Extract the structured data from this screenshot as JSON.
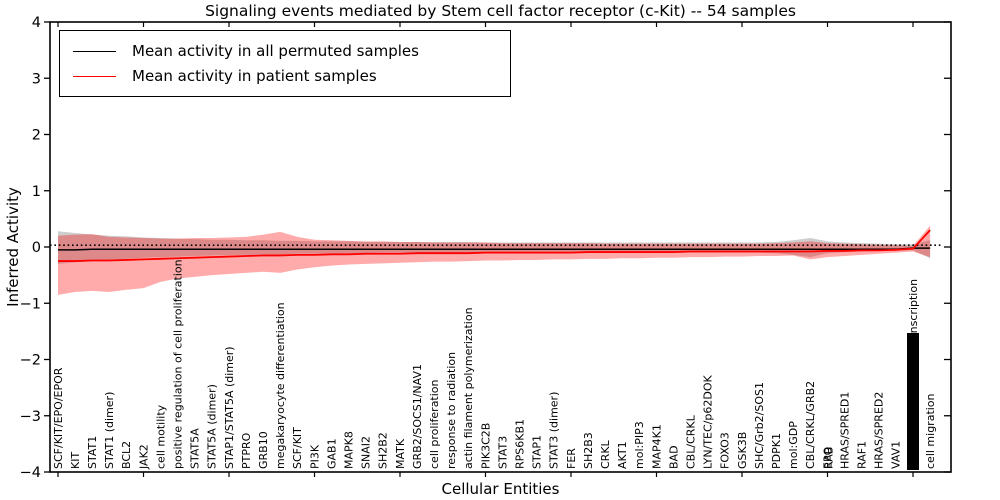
{
  "title": "Signaling events mediated by Stem cell factor receptor (c-Kit) -- 54 samples",
  "legend": {
    "entries": [
      {
        "label": "Mean activity in all permuted samples",
        "color": "#000000"
      },
      {
        "label": "Mean activity in patient samples",
        "color": "#ff0000"
      }
    ]
  },
  "chart_data": {
    "type": "line",
    "title": "Signaling events mediated by Stem cell factor receptor (c-Kit) -- 54 samples",
    "xlabel": "Cellular Entities",
    "ylabel": "Inferred Activity",
    "ylim": [
      -4,
      4
    ],
    "yticks": [
      {
        "v": 4,
        "label": "4"
      },
      {
        "v": 3,
        "label": "3"
      },
      {
        "v": 2,
        "label": "2"
      },
      {
        "v": 1,
        "label": "1"
      },
      {
        "v": 0,
        "label": "0"
      },
      {
        "v": -1,
        "label": "−1"
      },
      {
        "v": -2,
        "label": "−2"
      },
      {
        "v": -3,
        "label": "−3"
      },
      {
        "v": -4,
        "label": "−4"
      }
    ],
    "grid": false,
    "legend_position": "upper left",
    "zero_line_style": "dashdot",
    "categories": [
      "SCF/KIT/EPO/EPOR",
      "KIT",
      "STAT1",
      "STAT1 (dimer)",
      "BCL2",
      "JAK2",
      "cell motility",
      "positive regulation of cell proliferation",
      "STAT5A",
      "STAT5A (dimer)",
      "STAP1/STAT5A (dimer)",
      "PTPRO",
      "GRB10",
      "megakaryocyte differentiation",
      "SCF/KIT",
      "PI3K",
      "GAB1",
      "MAPK8",
      "SNAI2",
      "SH2B2",
      "MATK",
      "GRB2/SOCS1/NAV1",
      "cell proliferation",
      "response to radiation",
      "actin filament polymerization",
      "PIK3C2B",
      "STAT3",
      "RPS6KB1",
      "STAP1",
      "STAT3 (dimer)",
      "FER",
      "SH2B3",
      "CRKL",
      "AKT1",
      "mol:PIP3",
      "MAP4K1",
      "BAD",
      "CBL/CRKL",
      "LYN/TEC/p62DOK",
      "FOXO3",
      "GSK3B",
      "SHC/Grb2/SOS1",
      "PDPK1",
      "mol:GDP",
      "CBL/CRKL/GRB2",
      "EPO",
      "HRAS/SPRED1",
      "RAF1",
      "HRAS/SPRED2",
      "VAV1",
      "positive regulation of transcription",
      "cell migration"
    ],
    "overlapped_tick": {
      "index": 45,
      "labels": [
        "EPO",
        "RAB"
      ]
    },
    "illegible_cluster": {
      "index": 50,
      "visible_label": "positive regulation of transcription",
      "rendered_as": "solid block of many overlapping labels"
    },
    "series": [
      {
        "name": "Mean activity in all permuted samples",
        "color": "#000000",
        "values": [
          -0.05,
          -0.05,
          -0.04,
          -0.04,
          -0.04,
          -0.04,
          -0.04,
          -0.04,
          -0.04,
          -0.04,
          -0.04,
          -0.04,
          -0.04,
          -0.04,
          -0.04,
          -0.04,
          -0.04,
          -0.04,
          -0.04,
          -0.04,
          -0.04,
          -0.04,
          -0.04,
          -0.04,
          -0.04,
          -0.04,
          -0.04,
          -0.04,
          -0.04,
          -0.04,
          -0.04,
          -0.04,
          -0.04,
          -0.04,
          -0.04,
          -0.04,
          -0.04,
          -0.04,
          -0.04,
          -0.04,
          -0.04,
          -0.04,
          -0.04,
          -0.04,
          -0.04,
          -0.04,
          -0.04,
          -0.04,
          -0.04,
          -0.04,
          -0.02,
          -0.02
        ]
      },
      {
        "name": "Mean activity in patient samples",
        "color": "#ff0000",
        "values": [
          -0.25,
          -0.25,
          -0.24,
          -0.24,
          -0.23,
          -0.22,
          -0.21,
          -0.2,
          -0.19,
          -0.18,
          -0.17,
          -0.16,
          -0.15,
          -0.15,
          -0.14,
          -0.14,
          -0.13,
          -0.13,
          -0.12,
          -0.12,
          -0.12,
          -0.11,
          -0.11,
          -0.11,
          -0.11,
          -0.1,
          -0.1,
          -0.1,
          -0.1,
          -0.1,
          -0.1,
          -0.09,
          -0.09,
          -0.09,
          -0.09,
          -0.09,
          -0.09,
          -0.08,
          -0.08,
          -0.08,
          -0.08,
          -0.08,
          -0.08,
          -0.08,
          -0.08,
          -0.07,
          -0.07,
          -0.06,
          -0.06,
          -0.05,
          -0.03,
          0.3
        ]
      }
    ],
    "bands": [
      {
        "name": "permuted-samples-std-band",
        "color": "rgba(90,90,90,0.30)",
        "upper": [
          0.28,
          0.25,
          0.22,
          0.2,
          0.19,
          0.17,
          0.16,
          0.15,
          0.14,
          0.13,
          0.13,
          0.12,
          0.12,
          0.11,
          0.11,
          0.1,
          0.1,
          0.1,
          0.09,
          0.09,
          0.09,
          0.09,
          0.09,
          0.09,
          0.09,
          0.08,
          0.08,
          0.08,
          0.08,
          0.08,
          0.08,
          0.08,
          0.08,
          0.08,
          0.08,
          0.08,
          0.08,
          0.08,
          0.08,
          0.08,
          0.08,
          0.08,
          0.09,
          0.12,
          0.16,
          0.1,
          0.08,
          0.07,
          0.06,
          0.05,
          0.05,
          0.12
        ],
        "lower": [
          -0.3,
          -0.27,
          -0.25,
          -0.23,
          -0.21,
          -0.19,
          -0.18,
          -0.17,
          -0.16,
          -0.15,
          -0.14,
          -0.14,
          -0.13,
          -0.13,
          -0.12,
          -0.12,
          -0.11,
          -0.11,
          -0.11,
          -0.1,
          -0.1,
          -0.1,
          -0.1,
          -0.1,
          -0.1,
          -0.1,
          -0.1,
          -0.1,
          -0.1,
          -0.1,
          -0.1,
          -0.1,
          -0.1,
          -0.1,
          -0.1,
          -0.1,
          -0.1,
          -0.1,
          -0.1,
          -0.1,
          -0.1,
          -0.1,
          -0.11,
          -0.14,
          -0.18,
          -0.11,
          -0.09,
          -0.08,
          -0.07,
          -0.06,
          -0.06,
          -0.2
        ]
      },
      {
        "name": "patient-samples-std-band",
        "color": "rgba(255,0,0,0.33)",
        "upper": [
          0.2,
          0.22,
          0.23,
          0.18,
          0.17,
          0.16,
          0.15,
          0.15,
          0.16,
          0.16,
          0.17,
          0.18,
          0.22,
          0.27,
          0.18,
          0.13,
          0.12,
          0.11,
          0.1,
          0.1,
          0.09,
          0.09,
          0.08,
          0.08,
          0.08,
          0.08,
          0.07,
          0.07,
          0.07,
          0.07,
          0.07,
          0.07,
          0.06,
          0.06,
          0.06,
          0.06,
          0.06,
          0.06,
          0.06,
          0.06,
          0.06,
          0.06,
          0.07,
          0.08,
          0.1,
          0.07,
          0.06,
          0.05,
          0.04,
          0.03,
          0.02,
          0.38
        ],
        "lower": [
          -0.85,
          -0.8,
          -0.78,
          -0.8,
          -0.76,
          -0.73,
          -0.62,
          -0.56,
          -0.53,
          -0.5,
          -0.48,
          -0.46,
          -0.44,
          -0.46,
          -0.4,
          -0.36,
          -0.33,
          -0.31,
          -0.3,
          -0.29,
          -0.28,
          -0.27,
          -0.26,
          -0.26,
          -0.25,
          -0.24,
          -0.24,
          -0.23,
          -0.23,
          -0.22,
          -0.22,
          -0.21,
          -0.21,
          -0.2,
          -0.2,
          -0.19,
          -0.19,
          -0.18,
          -0.18,
          -0.17,
          -0.17,
          -0.16,
          -0.16,
          -0.15,
          -0.22,
          -0.18,
          -0.16,
          -0.14,
          -0.12,
          -0.1,
          -0.08,
          -0.18
        ]
      }
    ]
  }
}
